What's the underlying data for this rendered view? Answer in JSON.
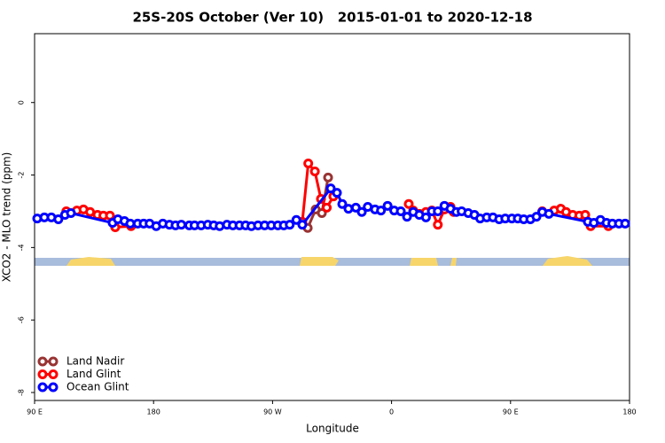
{
  "chart_data": {
    "type": "line",
    "title": "25S-20S October (Ver 10)   2015-01-01 to 2020-12-18",
    "x_label": "Longitude",
    "y_label": "XCO2 - MLO trend (ppm)",
    "xlim": [
      90,
      540
    ],
    "xticks": [
      {
        "value": 90,
        "label": "90 E"
      },
      {
        "value": 180,
        "label": "180"
      },
      {
        "value": 270,
        "label": "90 W"
      },
      {
        "value": 360,
        "label": "0"
      },
      {
        "value": 450,
        "label": "90 E"
      },
      {
        "value": 540,
        "label": "180"
      }
    ],
    "ylim": [
      -8.22,
      1.9
    ],
    "yticks": [
      0,
      -2,
      -4,
      -6,
      -8
    ],
    "legend": "bottom-left",
    "series": [
      {
        "name": "Land Nadir",
        "color": "#993333",
        "x": [
          296.6,
          302.6,
          307.3,
          312,
          null,
          488
        ],
        "values": [
          -3.46,
          -2.95,
          -3.05,
          -2.07,
          null,
          -2.93
        ]
      },
      {
        "name": "Land Glint",
        "color": "#ff0000",
        "x": [
          114,
          122,
          127,
          132,
          137.6,
          142,
          147,
          151,
          163,
          null,
          292.5,
          297,
          302,
          306.6,
          311,
          316,
          null,
          373,
          376.4,
          381,
          386,
          390.5,
          395,
          400,
          404.6,
          407,
          null,
          474,
          483,
          488,
          492,
          497,
          502,
          506.5,
          510.6,
          524
        ],
        "values": [
          -3.0,
          -2.98,
          -2.95,
          -3.02,
          -3.1,
          -3.12,
          -3.12,
          -3.44,
          -3.41,
          null,
          -3.29,
          -1.68,
          -1.9,
          -2.66,
          -2.9,
          -2.59,
          null,
          -2.8,
          -2.98,
          -3.07,
          -3.02,
          -2.98,
          -3.37,
          -2.95,
          -2.88,
          -3.02,
          null,
          -3.0,
          -2.98,
          -2.93,
          -3.02,
          -3.1,
          -3.12,
          -3.1,
          -3.41,
          -3.41
        ]
      },
      {
        "name": "Ocean Glint",
        "color": "#0000ff",
        "x": [
          92,
          97.4,
          102.7,
          108,
          113,
          117.5,
          149,
          153,
          158,
          162.4,
          168,
          172.5,
          177,
          182,
          187,
          192,
          196.6,
          201,
          207,
          211,
          216,
          221,
          225.5,
          230,
          235.5,
          240,
          245,
          249.6,
          254,
          259,
          264,
          269,
          274,
          278.5,
          283,
          288,
          292.5,
          314,
          318.7,
          322.7,
          327.4,
          333,
          337.5,
          342,
          347.5,
          352,
          357,
          362,
          367,
          371.7,
          376.4,
          381,
          386,
          390.5,
          395,
          400,
          404.6,
          409,
          413,
          418,
          422.7,
          427,
          432,
          436.7,
          441.4,
          446,
          451,
          455.5,
          460,
          465,
          469.6,
          474,
          479,
          508.5,
          513,
          518,
          522.6,
          527,
          532,
          536.7
        ],
        "values": [
          -3.2,
          -3.17,
          -3.17,
          -3.22,
          -3.1,
          -3.05,
          -3.32,
          -3.22,
          -3.27,
          -3.34,
          -3.34,
          -3.34,
          -3.34,
          -3.41,
          -3.34,
          -3.37,
          -3.39,
          -3.37,
          -3.39,
          -3.39,
          -3.39,
          -3.37,
          -3.39,
          -3.41,
          -3.37,
          -3.39,
          -3.39,
          -3.39,
          -3.41,
          -3.39,
          -3.39,
          -3.39,
          -3.39,
          -3.39,
          -3.37,
          -3.24,
          -3.37,
          -2.37,
          -2.49,
          -2.8,
          -2.93,
          -2.9,
          -3.02,
          -2.88,
          -2.95,
          -2.98,
          -2.85,
          -2.98,
          -3.0,
          -3.15,
          -3.02,
          -3.1,
          -3.17,
          -3.0,
          -3.0,
          -2.85,
          -2.93,
          -3.02,
          -3.0,
          -3.05,
          -3.1,
          -3.2,
          -3.17,
          -3.17,
          -3.22,
          -3.2,
          -3.2,
          -3.2,
          -3.22,
          -3.22,
          -3.15,
          -3.02,
          -3.07,
          -3.29,
          -3.32,
          -3.24,
          -3.32,
          -3.34,
          -3.34,
          -3.34
        ]
      }
    ]
  }
}
